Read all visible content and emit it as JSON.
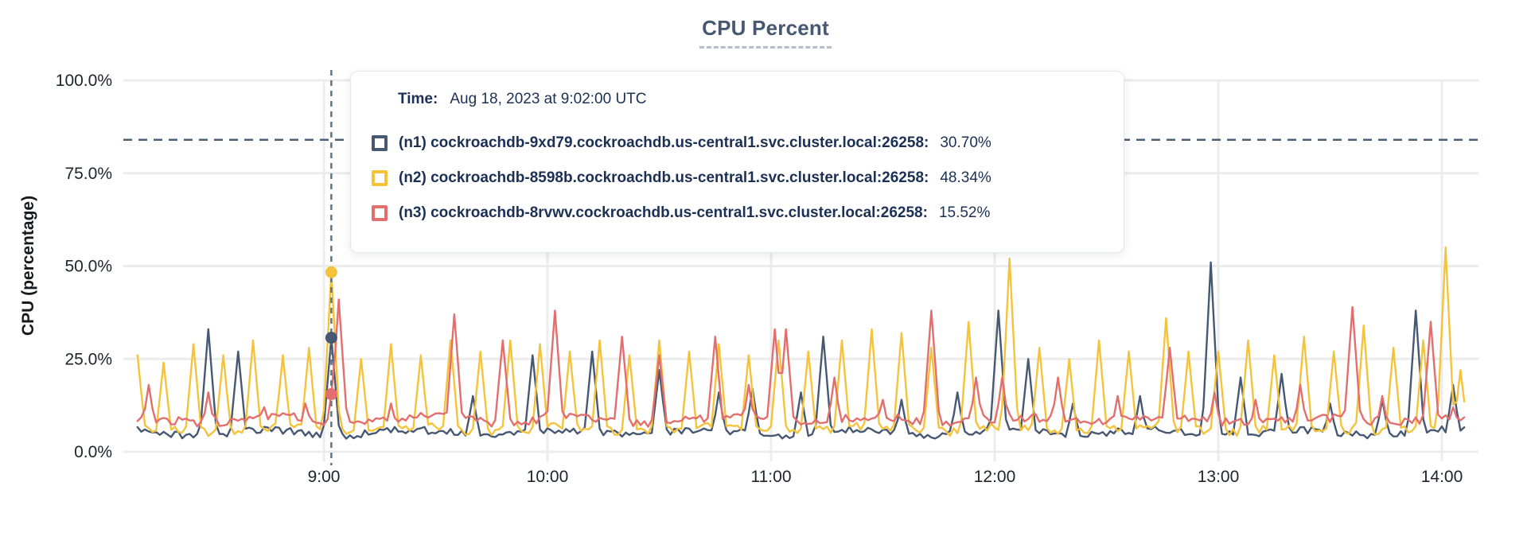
{
  "title": "CPU Percent",
  "colors": {
    "title": "#475872",
    "grid": "#ececec",
    "axis_text": "#20242c",
    "tooltip_text": "#1b3054",
    "threshold_dash": "#4a6075",
    "hover_dash": "#5d7789"
  },
  "tooltip": {
    "time_label": "Time:",
    "time_value": "Aug 18, 2023 at 9:02:00 UTC",
    "rows": [
      {
        "series": "n1",
        "label": "(n1) cockroachdb-9xd79.cockroachdb.us-central1.svc.cluster.local:26258:",
        "value": "30.70%",
        "color": "#475872"
      },
      {
        "series": "n2",
        "label": "(n2) cockroachdb-8598b.cockroachdb.us-central1.svc.cluster.local:26258:",
        "value": "48.34%",
        "color": "#f5c33b"
      },
      {
        "series": "n3",
        "label": "(n3) cockroachdb-8rvwv.cockroachdb.us-central1.svc.cluster.local:26258:",
        "value": "15.52%",
        "color": "#e26e6e"
      }
    ]
  },
  "chart_data": {
    "type": "line",
    "title": "CPU Percent",
    "xlabel": "",
    "ylabel": "CPU (percentage)",
    "ylim": [
      0,
      100
    ],
    "grid": true,
    "legend_position": "tooltip-overlay",
    "y_ticks": [
      {
        "label": "0.0%",
        "value": 0
      },
      {
        "label": "25.0%",
        "value": 25
      },
      {
        "label": "50.0%",
        "value": 50
      },
      {
        "label": "75.0%",
        "value": 75
      },
      {
        "label": "100.0%",
        "value": 100
      }
    ],
    "x_ticks": [
      {
        "label": "9:00",
        "minute": 540
      },
      {
        "label": "10:00",
        "minute": 600
      },
      {
        "label": "11:00",
        "minute": 660
      },
      {
        "label": "12:00",
        "minute": 720
      },
      {
        "label": "13:00",
        "minute": 780
      },
      {
        "label": "14:00",
        "minute": 840
      }
    ],
    "x_range_minutes": [
      490,
      846
    ],
    "threshold_line": {
      "style": "dashed",
      "value_percent": 84
    },
    "hover": {
      "minute": 542,
      "time": "Aug 18, 2023 at 9:02:00 UTC",
      "values": {
        "n1": 30.7,
        "n2": 48.34,
        "n3": 15.52
      }
    },
    "series": [
      {
        "id": "n1",
        "name": "(n1) cockroachdb-9xd79.cockroachdb.us-central1.svc.cluster.local:26258",
        "color": "#475872",
        "baseline_percent": 4.2,
        "noise_percent": 2.0,
        "spike_halfwidth_minutes": 2.6,
        "spikes_minute_peak": [
          [
            509,
            33
          ],
          [
            517,
            27
          ],
          [
            542,
            30.7
          ],
          [
            580,
            15
          ],
          [
            596,
            26
          ],
          [
            612,
            27
          ],
          [
            630,
            22
          ],
          [
            646,
            16
          ],
          [
            655,
            17
          ],
          [
            668,
            16
          ],
          [
            674,
            31
          ],
          [
            695,
            14
          ],
          [
            710,
            16
          ],
          [
            721,
            38
          ],
          [
            729,
            25
          ],
          [
            741,
            13
          ],
          [
            759,
            15
          ],
          [
            778,
            51
          ],
          [
            786,
            20
          ],
          [
            797,
            21
          ],
          [
            810,
            13
          ],
          [
            824,
            14
          ],
          [
            833,
            38
          ],
          [
            843,
            18
          ]
        ]
      },
      {
        "id": "n2",
        "name": "(n2) cockroachdb-8598b.cockroachdb.us-central1.svc.cluster.local:26258",
        "color": "#f5c33b",
        "baseline_percent": 4.8,
        "noise_percent": 2.4,
        "spike_halfwidth_minutes": 2.6,
        "spikes_minute_peak": [
          [
            490,
            26
          ],
          [
            497,
            24
          ],
          [
            505,
            29
          ],
          [
            513,
            26
          ],
          [
            521,
            30
          ],
          [
            529,
            26
          ],
          [
            536,
            28
          ],
          [
            542,
            48.34
          ],
          [
            550,
            25
          ],
          [
            558,
            29
          ],
          [
            566,
            26
          ],
          [
            574,
            30
          ],
          [
            582,
            27
          ],
          [
            590,
            30
          ],
          [
            598,
            29
          ],
          [
            606,
            27
          ],
          [
            614,
            30
          ],
          [
            622,
            26
          ],
          [
            630,
            30
          ],
          [
            638,
            27
          ],
          [
            646,
            29
          ],
          [
            654,
            26
          ],
          [
            662,
            30
          ],
          [
            670,
            27
          ],
          [
            679,
            30
          ],
          [
            687,
            33
          ],
          [
            695,
            32
          ],
          [
            703,
            28
          ],
          [
            713,
            35
          ],
          [
            724,
            52
          ],
          [
            732,
            28
          ],
          [
            740,
            25
          ],
          [
            748,
            30
          ],
          [
            756,
            27
          ],
          [
            766,
            36
          ],
          [
            772,
            27
          ],
          [
            780,
            27
          ],
          [
            788,
            30
          ],
          [
            795,
            26
          ],
          [
            803,
            31
          ],
          [
            811,
            27
          ],
          [
            819,
            34
          ],
          [
            827,
            28
          ],
          [
            835,
            30
          ],
          [
            841,
            55
          ],
          [
            845,
            22
          ]
        ]
      },
      {
        "id": "n3",
        "name": "(n3) cockroachdb-8rvwv.cockroachdb.us-central1.svc.cluster.local:26258",
        "color": "#e26e6e",
        "baseline_percent": 7.4,
        "noise_percent": 2.4,
        "spike_halfwidth_minutes": 2.8,
        "spikes_minute_peak": [
          [
            493,
            18
          ],
          [
            509,
            16
          ],
          [
            524,
            12
          ],
          [
            535,
            13
          ],
          [
            544,
            41
          ],
          [
            558,
            13
          ],
          [
            575,
            37
          ],
          [
            588,
            30
          ],
          [
            602,
            38
          ],
          [
            620,
            31
          ],
          [
            630,
            26
          ],
          [
            645,
            31
          ],
          [
            654,
            18
          ],
          [
            661,
            33
          ],
          [
            664,
            33
          ],
          [
            677,
            20
          ],
          [
            690,
            14
          ],
          [
            703,
            38
          ],
          [
            715,
            20
          ],
          [
            722,
            20
          ],
          [
            737,
            20
          ],
          [
            753,
            15
          ],
          [
            767,
            28
          ],
          [
            779,
            16
          ],
          [
            790,
            14
          ],
          [
            802,
            18
          ],
          [
            816,
            39
          ],
          [
            824,
            15
          ],
          [
            837,
            35
          ],
          [
            843,
            12
          ]
        ]
      }
    ]
  }
}
